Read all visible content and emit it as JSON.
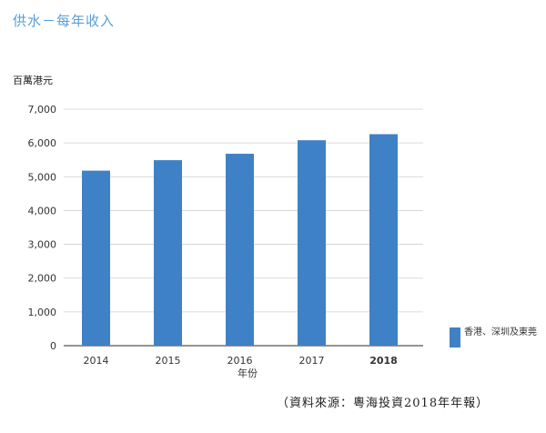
{
  "title": "供水－每年收入",
  "chart_data": {
    "type": "bar",
    "title": "供水－每年收入",
    "ylabel": "百萬港元",
    "xlabel": "年份",
    "categories": [
      "2014",
      "2015",
      "2016",
      "2017",
      "2018"
    ],
    "bold_category": "2018",
    "series": [
      {
        "name": "香港、深圳及東莞",
        "values": [
          5180,
          5490,
          5680,
          6080,
          6260
        ]
      }
    ],
    "ylim": [
      0,
      7000
    ],
    "yticks": [
      0,
      1000,
      2000,
      3000,
      4000,
      5000,
      6000,
      7000
    ],
    "ytick_labels": [
      "0",
      "1,000",
      "2,000",
      "3,000",
      "4,000",
      "5,000",
      "6,000",
      "7,000"
    ],
    "grid": true,
    "legend_position": "right",
    "bar_color": "#3f81c6"
  },
  "legend": {
    "label": "香港、深圳及東莞"
  },
  "source": "（資料來源：粵海投資2018年年報）"
}
